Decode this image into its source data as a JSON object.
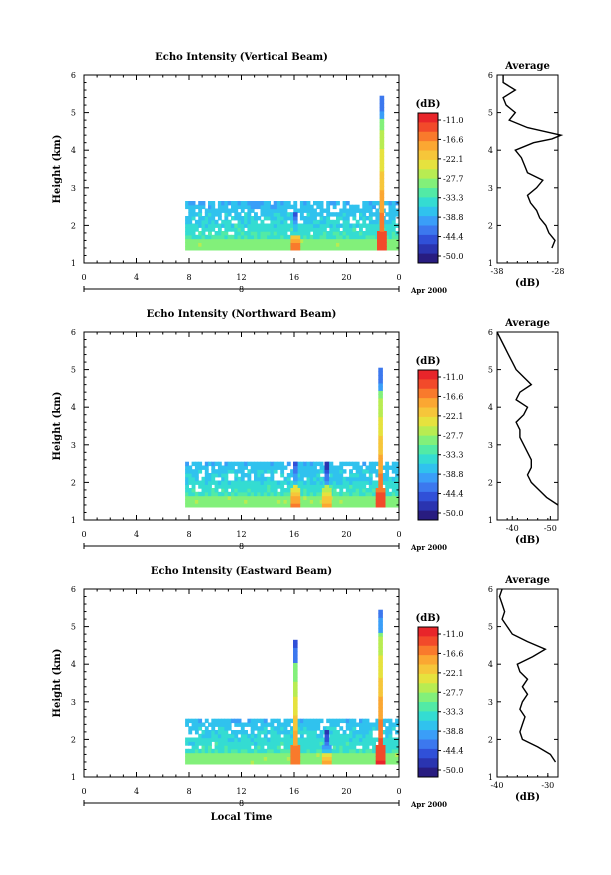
{
  "colorbar": {
    "unit": "(dB)",
    "labels": [
      "-11.0",
      "-16.6",
      "-22.1",
      "-27.7",
      "-33.3",
      "-38.8",
      "-44.4",
      "-50.0"
    ],
    "colors": [
      "#e8252a",
      "#f24a2a",
      "#f97a2c",
      "#fba732",
      "#f6c63a",
      "#e6e23e",
      "#b8ec52",
      "#82f07a",
      "#52eaa6",
      "#34dcd2",
      "#30c2ee",
      "#3a9ef8",
      "#3c78ee",
      "#3050d8",
      "#2a34b0",
      "#281c80"
    ]
  },
  "chart_data": [
    {
      "type": "heatmap",
      "title": "Echo Intensity (Vertical Beam)",
      "ylabel": "Height (km)",
      "xlabel": "",
      "x_ticks": [
        "0",
        "4",
        "8",
        "12",
        "16",
        "20",
        "0"
      ],
      "y_ticks": [
        "1",
        "2",
        "3",
        "4",
        "5",
        "6"
      ],
      "xlim": [
        0,
        24
      ],
      "ylim": [
        1,
        6
      ],
      "date_day": "8",
      "date_label": "Apr 2000",
      "scale_range_db": [
        -50.0,
        -11.0
      ],
      "data_start_hour": 7.7,
      "layer_top_km": 2.6,
      "spikes": [
        {
          "hour": 16.1,
          "top_km": 2.3,
          "peak_db": -16
        },
        {
          "hour": 22.7,
          "top_km": 5.4,
          "peak_db": -14
        }
      ],
      "profile": {
        "title": "Average",
        "xlabel": "(dB)",
        "x_ticks": [
          "-38",
          "-28"
        ],
        "xlim": [
          -38,
          -28
        ],
        "height_km": [
          1.4,
          1.6,
          1.8,
          2.0,
          2.2,
          2.4,
          2.6,
          2.8,
          3.0,
          3.2,
          3.4,
          3.6,
          3.8,
          4.0,
          4.2,
          4.3,
          4.4,
          4.6,
          4.8,
          5.0,
          5.2,
          5.4,
          5.6,
          5.8,
          6.0
        ],
        "values_db": [
          -29,
          -28.5,
          -29.5,
          -30,
          -31,
          -31.5,
          -32.5,
          -33,
          -31.5,
          -30.5,
          -33,
          -33.5,
          -34,
          -35,
          -32,
          -29,
          -27.5,
          -33,
          -36,
          -35,
          -36.5,
          -37,
          -35,
          -37,
          -37
        ]
      }
    },
    {
      "type": "heatmap",
      "title": "Echo Intensity (Northward Beam)",
      "ylabel": "Height (km)",
      "xlabel": "",
      "x_ticks": [
        "0",
        "4",
        "8",
        "12",
        "16",
        "20",
        "0"
      ],
      "y_ticks": [
        "1",
        "2",
        "3",
        "4",
        "5",
        "6"
      ],
      "xlim": [
        0,
        24
      ],
      "ylim": [
        1,
        6
      ],
      "date_day": "8",
      "date_label": "Apr 2000",
      "scale_range_db": [
        -50.0,
        -11.0
      ],
      "data_start_hour": 7.7,
      "layer_top_km": 2.5,
      "spikes": [
        {
          "hour": 16.1,
          "top_km": 2.5,
          "peak_db": -17
        },
        {
          "hour": 18.5,
          "top_km": 2.5,
          "peak_db": -20
        },
        {
          "hour": 22.6,
          "top_km": 5.0,
          "peak_db": -14
        }
      ],
      "profile": {
        "title": "Average",
        "xlabel": "(dB)",
        "x_ticks": [
          "-40",
          "-50"
        ],
        "xlim": [
          -36,
          -52
        ],
        "height_km": [
          1.4,
          1.6,
          1.8,
          2.0,
          2.2,
          2.4,
          2.6,
          2.8,
          3.0,
          3.2,
          3.4,
          3.6,
          3.8,
          4.0,
          4.2,
          4.4,
          4.6,
          4.8,
          5.0,
          5.2,
          5.4,
          5.6,
          5.8,
          6.0
        ],
        "values_db": [
          -52,
          -49,
          -47,
          -45,
          -44,
          -45,
          -45,
          -44,
          -43,
          -42,
          -42,
          -41,
          -43,
          -44,
          -41,
          -42,
          -45,
          -43,
          -41,
          -40,
          -39,
          -38,
          -37,
          -36
        ]
      }
    },
    {
      "type": "heatmap",
      "title": "Echo Intensity (Eastward Beam)",
      "ylabel": "Height (km)",
      "xlabel": "Local Time",
      "x_ticks": [
        "0",
        "4",
        "8",
        "12",
        "16",
        "20",
        "0"
      ],
      "y_ticks": [
        "1",
        "2",
        "3",
        "4",
        "5",
        "6"
      ],
      "xlim": [
        0,
        24
      ],
      "ylim": [
        1,
        6
      ],
      "date_day": "8",
      "date_label": "Apr 2000",
      "scale_range_db": [
        -50.0,
        -11.0
      ],
      "data_start_hour": 7.7,
      "layer_top_km": 2.5,
      "spikes": [
        {
          "hour": 16.1,
          "top_km": 4.6,
          "peak_db": -16
        },
        {
          "hour": 18.5,
          "top_km": 2.2,
          "peak_db": -20
        },
        {
          "hour": 22.6,
          "top_km": 5.4,
          "peak_db": -13
        }
      ],
      "profile": {
        "title": "Average",
        "xlabel": "(dB)",
        "x_ticks": [
          "-40",
          "-30"
        ],
        "xlim": [
          -40,
          -28
        ],
        "height_km": [
          1.4,
          1.6,
          1.8,
          2.0,
          2.2,
          2.4,
          2.6,
          2.8,
          3.0,
          3.2,
          3.4,
          3.6,
          3.8,
          4.0,
          4.2,
          4.4,
          4.6,
          4.8,
          5.0,
          5.2,
          5.4,
          5.6,
          5.8,
          6.0
        ],
        "values_db": [
          -28.5,
          -29.5,
          -32,
          -35,
          -35.5,
          -35,
          -34.5,
          -35.5,
          -35,
          -34,
          -35,
          -34,
          -35.5,
          -36,
          -33,
          -30.5,
          -34,
          -37,
          -38,
          -39,
          -38.5,
          -39,
          -39.5,
          -39
        ]
      }
    }
  ]
}
